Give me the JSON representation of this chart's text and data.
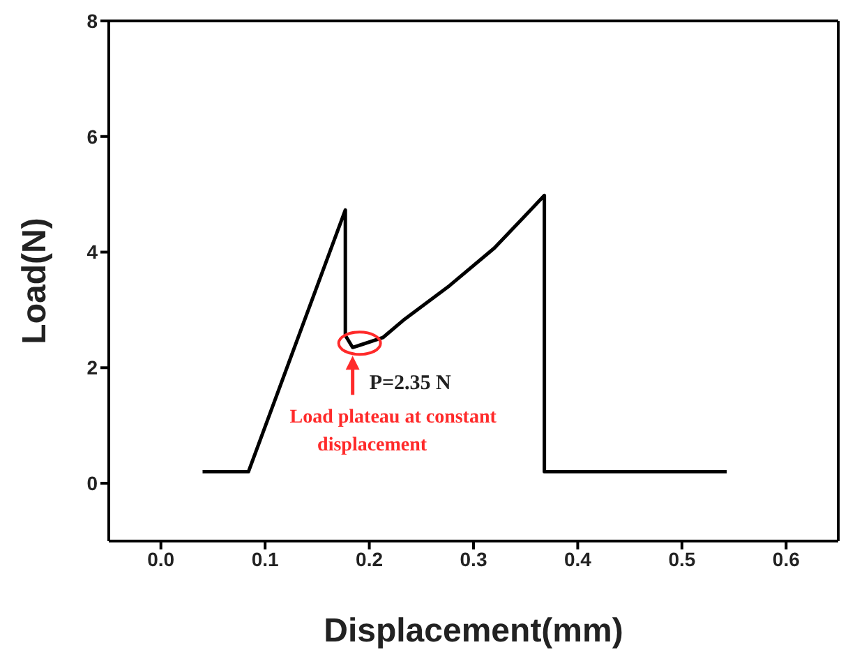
{
  "chart_data": {
    "type": "line",
    "xlabel": "Displacement(mm)",
    "ylabel": "Load(N)",
    "xlim": [
      -0.05,
      0.65
    ],
    "xticks": [
      {
        "value": 0,
        "label": "0.0"
      },
      0.1,
      0.2,
      0.3,
      0.4,
      0.5,
      0.6
    ],
    "ylim": [
      -1,
      8
    ],
    "yticks": [
      0,
      2,
      4,
      6,
      8
    ],
    "marker": "none",
    "line_style": "solid",
    "series": [
      {
        "color": "#000000",
        "x": [
          0.04,
          0.084,
          0.177,
          0.177,
          0.184,
          0.191,
          0.213,
          0.234,
          0.277,
          0.32,
          0.368,
          0.368,
          0.543
        ],
        "values": [
          0.2,
          0.2,
          4.73,
          2.56,
          2.35,
          2.39,
          2.52,
          2.84,
          3.42,
          4.07,
          4.98,
          0.2,
          0.2
        ]
      }
    ],
    "annotations": [
      {
        "text": "P=2.35 N",
        "x": 0.184,
        "y": 2.35
      },
      "Load plateau at constant displacement"
    ]
  }
}
